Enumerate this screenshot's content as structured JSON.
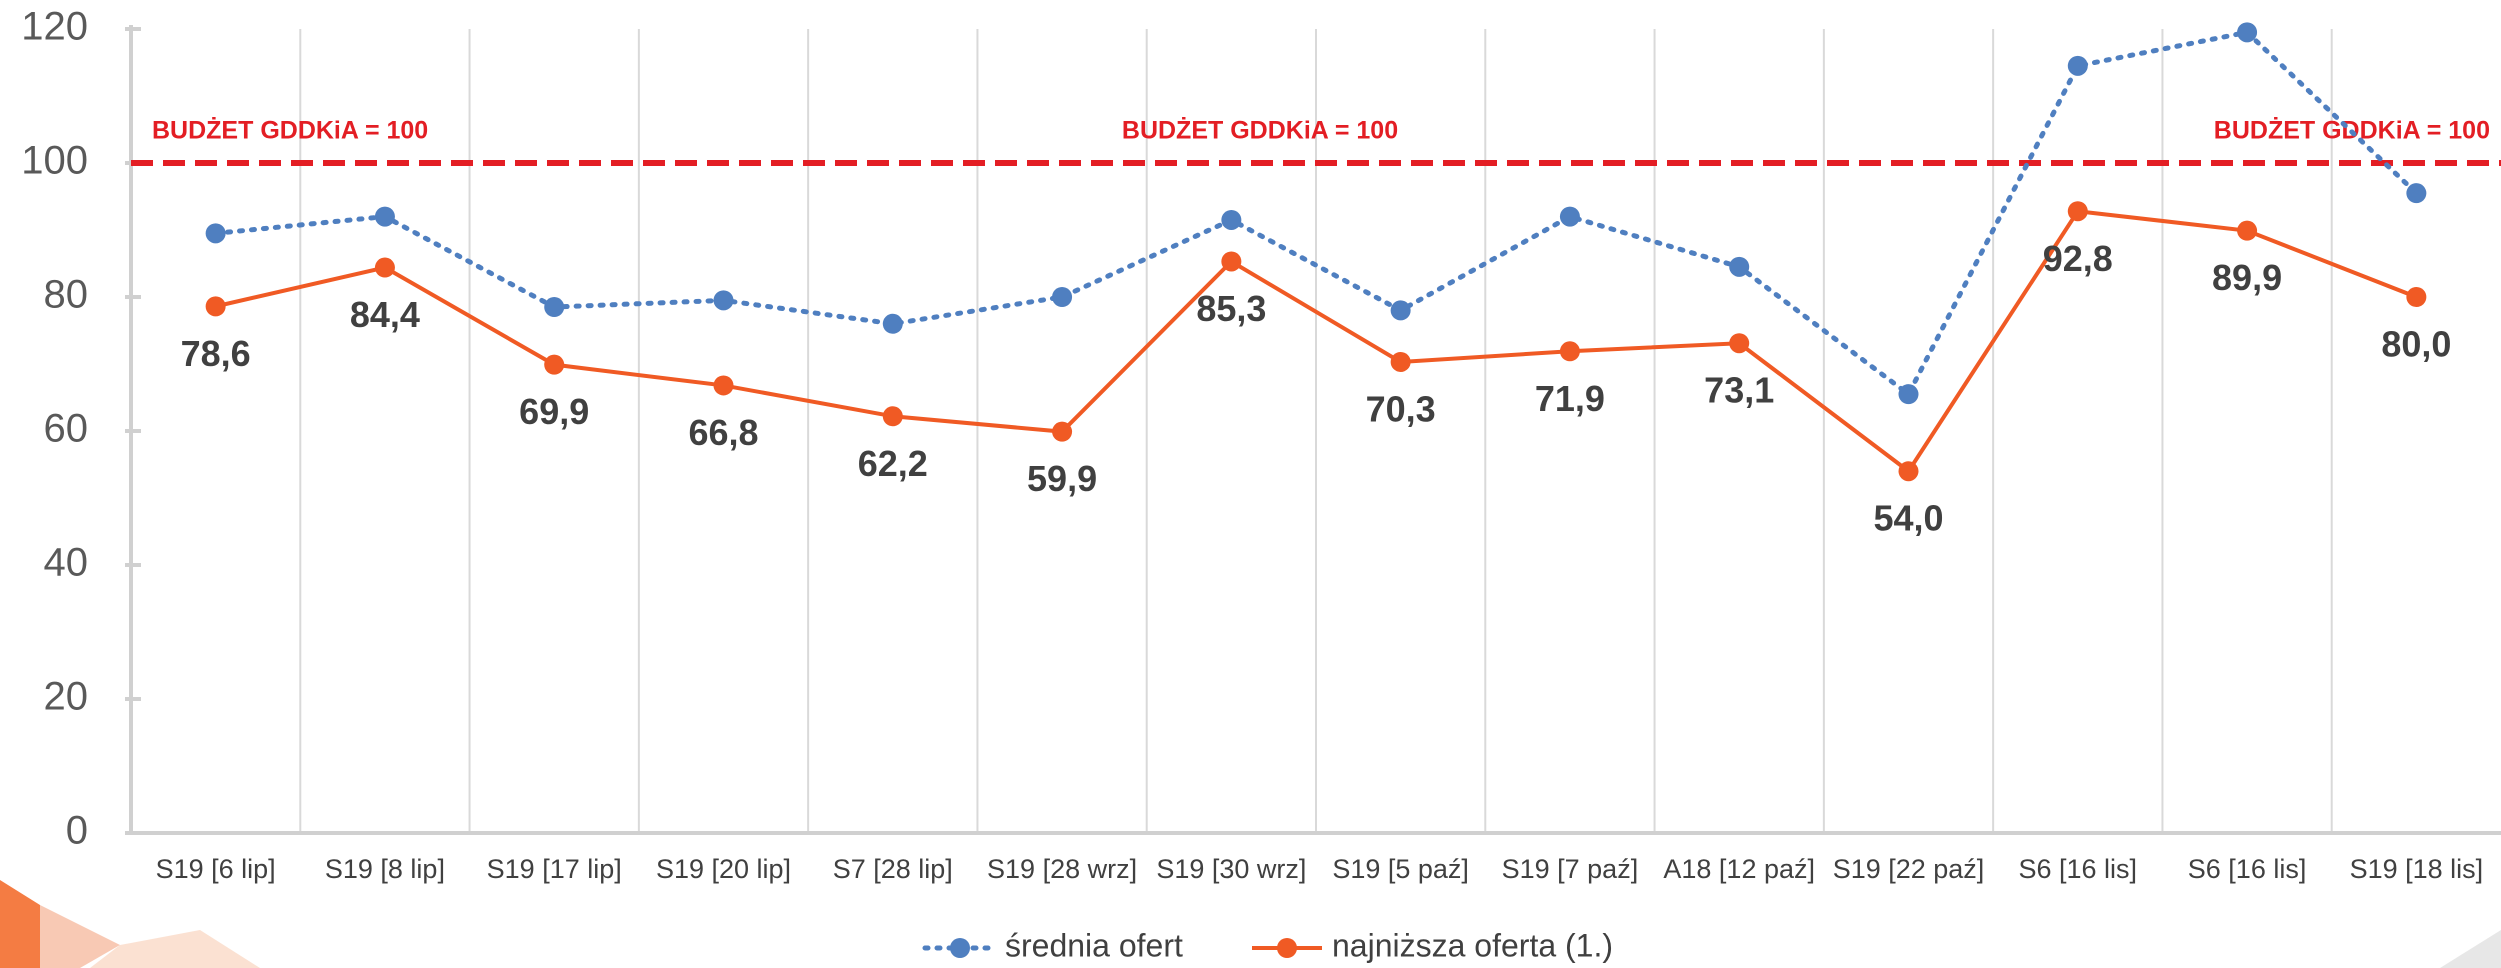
{
  "chart_data": {
    "type": "line",
    "categories": [
      "S19 [6 lip]",
      "S19 [8 lip]",
      "S19 [17 lip]",
      "S19 [20 lip]",
      "S7 [28 lip]",
      "S19 [28 wrz]",
      "S19 [30 wrz]",
      "S19 [5 paź]",
      "S19 [7 paź]",
      "A18 [12 paź]",
      "S19 [22 paź]",
      "S6 [16 lis]",
      "S6 [16 lis]",
      "S19 [18 lis]"
    ],
    "series": [
      {
        "name": "średnia ofert",
        "color": "#4f7fc0",
        "line_style": "dotted",
        "values": [
          89.5,
          92,
          78.5,
          79.5,
          76,
          80,
          91.5,
          78,
          92,
          84.5,
          65.5,
          114.5,
          119.5,
          95.5
        ]
      },
      {
        "name": "najniższa oferta (1.)",
        "color": "#f05a24",
        "line_style": "solid",
        "values": [
          78.6,
          84.4,
          69.9,
          66.8,
          62.2,
          59.9,
          85.3,
          70.3,
          71.9,
          73.1,
          54.0,
          92.8,
          89.9,
          80.0
        ],
        "value_labels": [
          "78,6",
          "84,4",
          "69,9",
          "66,8",
          "62,2",
          "59,9",
          "85,3",
          "70,3",
          "71,9",
          "73,1",
          "54,0",
          "92,8",
          "89,9",
          "80,0"
        ]
      }
    ],
    "reference_line": {
      "value": 100,
      "label": "BUDŻET GDDKiA = 100",
      "color": "#e31e24"
    },
    "ylim": [
      0,
      120
    ],
    "yticks": [
      0,
      20,
      40,
      60,
      80,
      100,
      120
    ],
    "legend": "bottom"
  }
}
